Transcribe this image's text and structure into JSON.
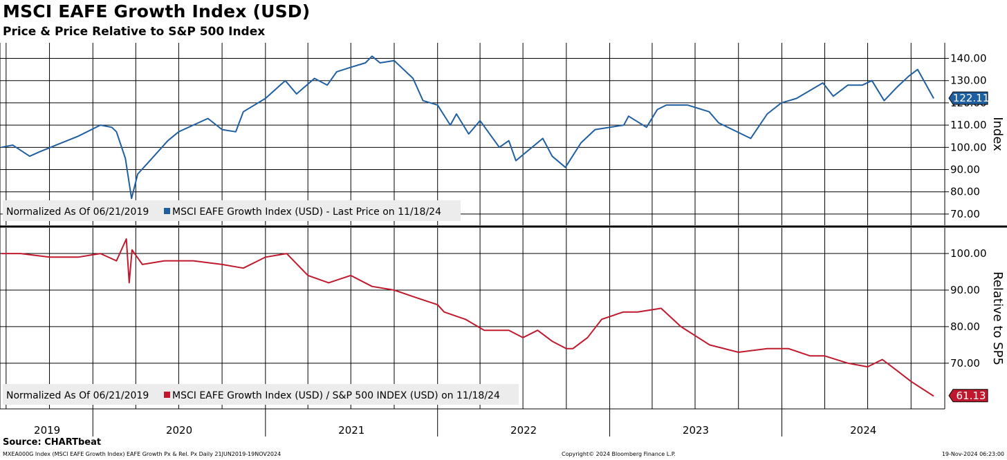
{
  "title": "MSCI EAFE Growth Index (USD)",
  "subtitle": "Price & Price Relative to S&P 500 Index",
  "source": "Source: CHARTbeat",
  "footer": {
    "left": "MXEA000G Index (MSCI EAFE Growth Index) EAFE Growth Px & Rel. Px  Daily 21JUN2019-19NOV2024",
    "mid": "Copyright© 2024 Bloomberg Finance L.P.",
    "right": "19-Nov-2024 06:23:00"
  },
  "colors": {
    "price": "#1f5fa0",
    "relative": "#c0182c",
    "grid": "#000000",
    "legend_bg": "#ececec"
  },
  "chart_data": [
    {
      "type": "line",
      "ylabel": "Index",
      "ylim": [
        65,
        147
      ],
      "yticks": [
        "140.00",
        "130.00",
        "120.00",
        "110.00",
        "100.00",
        "90.00",
        "80.00",
        "70.00"
      ],
      "legend_text": "Normalized As Of 06/21/2019",
      "legend_series": "MSCI EAFE Growth Index (USD) - Last Price on 11/18/24",
      "last_value": 122.11,
      "last_label": "122.11",
      "series": [
        {
          "name": "MSCI EAFE Growth Index (USD) - Last Price on 11/18/24",
          "x": [
            "2019-06-21",
            "2019-07-15",
            "2019-08-20",
            "2019-09-10",
            "2019-10-15",
            "2019-12-01",
            "2020-01-17",
            "2020-02-10",
            "2020-02-20",
            "2020-03-10",
            "2020-03-23",
            "2020-04-05",
            "2020-05-01",
            "2020-06-08",
            "2020-07-01",
            "2020-08-01",
            "2020-09-01",
            "2020-10-01",
            "2020-10-30",
            "2020-11-15",
            "2021-01-01",
            "2021-02-12",
            "2021-03-08",
            "2021-04-15",
            "2021-05-12",
            "2021-06-01",
            "2021-07-01",
            "2021-08-01",
            "2021-08-15",
            "2021-09-01",
            "2021-10-01",
            "2021-11-10",
            "2021-12-01",
            "2022-01-01",
            "2022-01-28",
            "2022-02-10",
            "2022-03-08",
            "2022-04-01",
            "2022-05-12",
            "2022-06-01",
            "2022-06-16",
            "2022-08-12",
            "2022-09-01",
            "2022-09-29",
            "2022-11-01",
            "2022-12-01",
            "2023-01-31",
            "2023-02-10",
            "2023-03-20",
            "2023-04-12",
            "2023-05-01",
            "2023-06-15",
            "2023-07-31",
            "2023-08-20",
            "2023-10-27",
            "2023-12-01",
            "2023-12-31",
            "2024-02-01",
            "2024-03-28",
            "2024-04-19",
            "2024-05-20",
            "2024-06-20",
            "2024-07-10",
            "2024-08-05",
            "2024-09-01",
            "2024-09-26",
            "2024-10-15",
            "2024-11-18"
          ],
          "values": [
            100,
            101,
            96,
            98,
            101,
            105,
            110,
            109,
            107,
            95,
            77,
            88,
            94,
            103,
            107,
            110,
            113,
            108,
            107,
            116,
            122,
            130,
            124,
            131,
            128,
            134,
            136,
            138,
            141,
            138,
            139,
            131,
            121,
            119,
            110,
            115,
            106,
            112,
            100,
            103,
            94,
            104,
            96,
            91,
            102,
            108,
            110,
            114,
            109,
            117,
            119,
            119,
            116,
            111,
            104,
            115,
            120,
            122,
            129,
            123,
            128,
            128,
            130,
            121,
            127,
            132,
            135,
            122
          ]
        }
      ]
    },
    {
      "type": "line",
      "ylabel": "Relative to SP5",
      "ylim": [
        57.5,
        107
      ],
      "yticks": [
        "100.00",
        "90.00",
        "80.00",
        "70.00"
      ],
      "legend_text": "Normalized As Of 06/21/2019",
      "legend_series": "MSCI EAFE Growth Index (USD) / S&P 500 INDEX (USD) on 11/18/24",
      "last_value": 61.13,
      "last_label": "61.13",
      "series": [
        {
          "name": "MSCI EAFE Growth Index (USD) / S&P 500 INDEX (USD) on 11/18/24",
          "x": [
            "2019-06-21",
            "2019-08-01",
            "2019-10-01",
            "2019-12-01",
            "2020-01-17",
            "2020-02-20",
            "2020-03-12",
            "2020-03-18",
            "2020-03-24",
            "2020-04-15",
            "2020-06-01",
            "2020-08-01",
            "2020-10-01",
            "2020-11-15",
            "2021-01-01",
            "2021-02-15",
            "2021-04-01",
            "2021-05-15",
            "2021-07-01",
            "2021-08-15",
            "2021-10-01",
            "2021-11-15",
            "2022-01-01",
            "2022-01-15",
            "2022-03-01",
            "2022-04-10",
            "2022-06-01",
            "2022-07-01",
            "2022-08-01",
            "2022-09-01",
            "2022-10-01",
            "2022-10-15",
            "2022-11-15",
            "2022-12-15",
            "2023-01-30",
            "2023-03-01",
            "2023-04-20",
            "2023-06-01",
            "2023-08-01",
            "2023-10-01",
            "2023-12-01",
            "2024-01-15",
            "2024-03-01",
            "2024-04-01",
            "2024-05-20",
            "2024-07-01",
            "2024-08-01",
            "2024-09-01",
            "2024-10-01",
            "2024-11-18"
          ],
          "values": [
            100,
            100,
            99,
            99,
            100,
            98,
            104,
            92,
            101,
            97,
            98,
            98,
            97,
            96,
            99,
            100,
            94,
            92,
            94,
            91,
            90,
            88,
            86,
            84,
            82,
            79,
            79,
            77,
            79,
            76,
            74,
            74,
            77,
            82,
            84,
            84,
            85,
            80,
            75,
            73,
            74,
            74,
            72,
            72,
            70,
            69,
            71,
            68,
            65,
            61
          ]
        }
      ]
    }
  ],
  "x_axis": {
    "years": [
      "2019",
      "2020",
      "2021",
      "2022",
      "2023",
      "2024"
    ]
  }
}
